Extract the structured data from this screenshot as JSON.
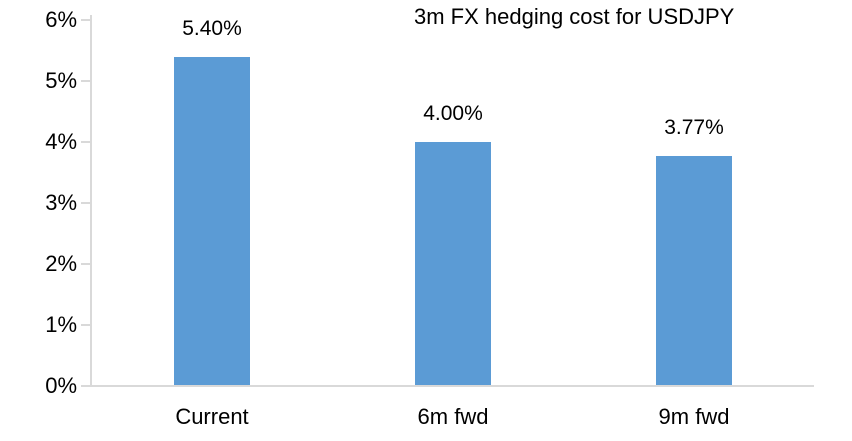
{
  "title": "3m FX hedging cost for USDJPY",
  "colors": {
    "bar": "#5B9BD5",
    "axis": "#D9D9D9",
    "text": "#000000",
    "background": "#FFFFFF"
  },
  "chart_data": {
    "type": "bar",
    "title": "3m FX hedging cost for USDJPY",
    "categories": [
      "Current",
      "6m fwd",
      "9m fwd"
    ],
    "values": [
      5.4,
      4.0,
      3.77
    ],
    "data_labels": [
      "5.40%",
      "4.00%",
      "3.77%"
    ],
    "xlabel": "",
    "ylabel": "",
    "ylim": [
      0,
      6
    ],
    "ytick_step": 1,
    "ytick_labels": [
      "0%",
      "1%",
      "2%",
      "3%",
      "4%",
      "5%",
      "6%"
    ],
    "grid": false,
    "legend": false,
    "data_label_position": "outside-end",
    "series_color": "#5B9BD5"
  }
}
